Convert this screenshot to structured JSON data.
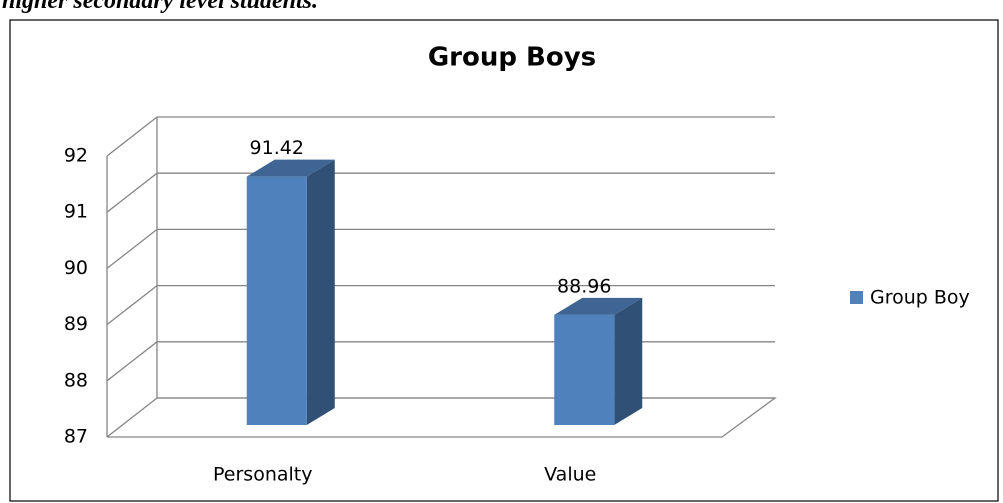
{
  "header": {
    "text": "higher secondary level students."
  },
  "chart_data": {
    "type": "bar",
    "title": "Group Boys",
    "categories": [
      "Personalty",
      "Value"
    ],
    "series": [
      {
        "name": "Group Boy",
        "color": "#4f81bd",
        "values": [
          91.42,
          88.96
        ]
      }
    ],
    "ylim": [
      87,
      92
    ],
    "yticks": [
      87,
      88,
      89,
      90,
      91,
      92
    ],
    "grid": true,
    "legend": "right"
  }
}
